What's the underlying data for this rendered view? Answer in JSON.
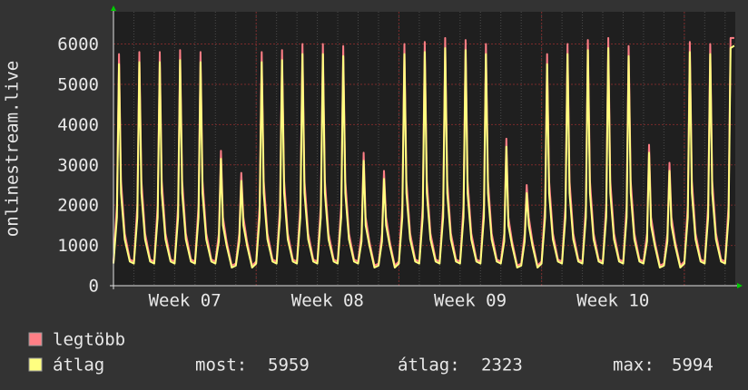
{
  "chart_data": {
    "type": "line",
    "ylabel": "onlinestream.live",
    "xlim": [
      0,
      30.5
    ],
    "ylim": [
      0,
      6800
    ],
    "yticks": [
      0,
      1000,
      2000,
      3000,
      4000,
      5000,
      6000
    ],
    "xticks": [
      {
        "value": 3.5,
        "label": "Week 07"
      },
      {
        "value": 10.5,
        "label": "Week 08"
      },
      {
        "value": 17.5,
        "label": "Week 09"
      },
      {
        "value": 24.5,
        "label": "Week 10"
      }
    ],
    "xgrid": [
      7,
      14,
      21,
      28
    ],
    "grid": true,
    "x": [
      0,
      0.17,
      0.27,
      0.37,
      0.55,
      0.8,
      1,
      1.17,
      1.27,
      1.37,
      1.55,
      1.8,
      2,
      2.17,
      2.27,
      2.37,
      2.55,
      2.8,
      3,
      3.17,
      3.27,
      3.37,
      3.55,
      3.8,
      4,
      4.17,
      4.27,
      4.37,
      4.55,
      4.8,
      5,
      5.17,
      5.27,
      5.37,
      5.55,
      5.8,
      6,
      6.17,
      6.27,
      6.37,
      6.55,
      6.8,
      7,
      7.17,
      7.27,
      7.37,
      7.55,
      7.8,
      8,
      8.17,
      8.27,
      8.37,
      8.55,
      8.8,
      9,
      9.17,
      9.27,
      9.37,
      9.55,
      9.8,
      10,
      10.17,
      10.27,
      10.37,
      10.55,
      10.8,
      11,
      11.17,
      11.27,
      11.37,
      11.55,
      11.8,
      12,
      12.17,
      12.27,
      12.37,
      12.55,
      12.8,
      13,
      13.17,
      13.27,
      13.37,
      13.55,
      13.8,
      14,
      14.17,
      14.27,
      14.37,
      14.55,
      14.8,
      15,
      15.17,
      15.27,
      15.37,
      15.55,
      15.8,
      16,
      16.17,
      16.27,
      16.37,
      16.55,
      16.8,
      17,
      17.17,
      17.27,
      17.37,
      17.55,
      17.8,
      18,
      18.17,
      18.27,
      18.37,
      18.55,
      18.8,
      19,
      19.17,
      19.27,
      19.37,
      19.55,
      19.8,
      20,
      20.17,
      20.27,
      20.37,
      20.55,
      20.8,
      21,
      21.17,
      21.27,
      21.37,
      21.55,
      21.8,
      22,
      22.17,
      22.27,
      22.37,
      22.55,
      22.8,
      23,
      23.17,
      23.27,
      23.37,
      23.55,
      23.8,
      24,
      24.17,
      24.27,
      24.37,
      24.55,
      24.8,
      25,
      25.17,
      25.27,
      25.37,
      25.55,
      25.8,
      26,
      26.17,
      26.27,
      26.37,
      26.55,
      26.8,
      27,
      27.17,
      27.27,
      27.37,
      27.55,
      27.8,
      28,
      28.17,
      28.27,
      28.37,
      28.55,
      28.8,
      29,
      29.17,
      29.27,
      29.37,
      29.55,
      29.8,
      30,
      30.17,
      30.27,
      30.45
    ],
    "series": [
      {
        "name": "legtöbb",
        "color": "#ff7f86",
        "values": [
          600,
          2000,
          5750,
          2600,
          1300,
          650,
          600,
          2000,
          5800,
          2600,
          1300,
          650,
          600,
          2000,
          5800,
          2600,
          1300,
          650,
          600,
          2000,
          5850,
          2600,
          1300,
          650,
          600,
          2000,
          5800,
          2600,
          1300,
          650,
          600,
          1300,
          3350,
          1700,
          1100,
          500,
          550,
          1300,
          2800,
          1700,
          1100,
          500,
          600,
          2000,
          5800,
          2600,
          1300,
          650,
          600,
          2000,
          5850,
          2600,
          1300,
          650,
          600,
          2000,
          6000,
          2600,
          1300,
          650,
          600,
          2000,
          6000,
          2600,
          1300,
          650,
          600,
          2000,
          5950,
          2600,
          1300,
          650,
          600,
          1300,
          3300,
          1700,
          1100,
          500,
          550,
          1300,
          2850,
          1700,
          1100,
          500,
          600,
          2000,
          6000,
          2600,
          1300,
          650,
          600,
          2000,
          6050,
          2600,
          1300,
          650,
          600,
          2000,
          6150,
          2600,
          1300,
          650,
          600,
          2000,
          6100,
          2600,
          1300,
          650,
          600,
          2000,
          6000,
          2600,
          1300,
          650,
          600,
          1300,
          3650,
          1700,
          1100,
          500,
          550,
          1300,
          2500,
          1700,
          1100,
          500,
          600,
          2000,
          5750,
          2600,
          1300,
          650,
          600,
          2000,
          6000,
          2600,
          1300,
          650,
          600,
          2000,
          6100,
          2600,
          1300,
          650,
          600,
          2000,
          6150,
          2600,
          1300,
          650,
          600,
          2000,
          5950,
          2600,
          1300,
          650,
          600,
          1300,
          3500,
          1700,
          1100,
          500,
          550,
          1300,
          3050,
          1700,
          1100,
          500,
          600,
          2000,
          6050,
          2600,
          1300,
          650,
          600,
          2000,
          6000,
          2600,
          1300,
          650,
          600,
          2000,
          6150,
          6150
        ]
      },
      {
        "name": "átlag",
        "color": "#ffff80",
        "values": [
          550,
          1700,
          5500,
          2300,
          1150,
          600,
          550,
          1700,
          5550,
          2300,
          1150,
          600,
          550,
          1700,
          5550,
          2300,
          1150,
          600,
          550,
          1700,
          5600,
          2300,
          1150,
          600,
          550,
          1700,
          5550,
          2300,
          1150,
          600,
          550,
          1100,
          3150,
          1500,
          1000,
          450,
          500,
          1100,
          2600,
          1500,
          1000,
          450,
          550,
          1700,
          5550,
          2300,
          1150,
          600,
          550,
          1700,
          5600,
          2300,
          1150,
          600,
          550,
          1700,
          5750,
          2300,
          1150,
          600,
          550,
          1700,
          5750,
          2300,
          1150,
          600,
          550,
          1700,
          5700,
          2300,
          1150,
          600,
          550,
          1100,
          3100,
          1500,
          1000,
          450,
          500,
          1100,
          2650,
          1500,
          1000,
          450,
          550,
          1700,
          5750,
          2300,
          1150,
          600,
          550,
          1700,
          5800,
          2300,
          1150,
          600,
          550,
          1700,
          5900,
          2300,
          1150,
          600,
          550,
          1700,
          5850,
          2300,
          1150,
          600,
          550,
          1700,
          5750,
          2300,
          1150,
          600,
          550,
          1100,
          3450,
          1500,
          1000,
          450,
          500,
          1100,
          2300,
          1500,
          1000,
          450,
          550,
          1700,
          5500,
          2300,
          1150,
          600,
          550,
          1700,
          5750,
          2300,
          1150,
          600,
          550,
          1700,
          5850,
          2300,
          1150,
          600,
          550,
          1700,
          5900,
          2300,
          1150,
          600,
          550,
          1700,
          5700,
          2300,
          1150,
          600,
          550,
          1100,
          3300,
          1500,
          1000,
          450,
          500,
          1100,
          2850,
          1500,
          1000,
          450,
          550,
          1700,
          5800,
          2300,
          1150,
          600,
          550,
          1700,
          5750,
          2300,
          1150,
          600,
          550,
          1700,
          5900,
          5959
        ]
      }
    ],
    "stats": [
      {
        "label": "most:",
        "value": 5959
      },
      {
        "label": "átlag:",
        "value": 2323
      },
      {
        "label": "max:",
        "value": 5994
      }
    ]
  }
}
